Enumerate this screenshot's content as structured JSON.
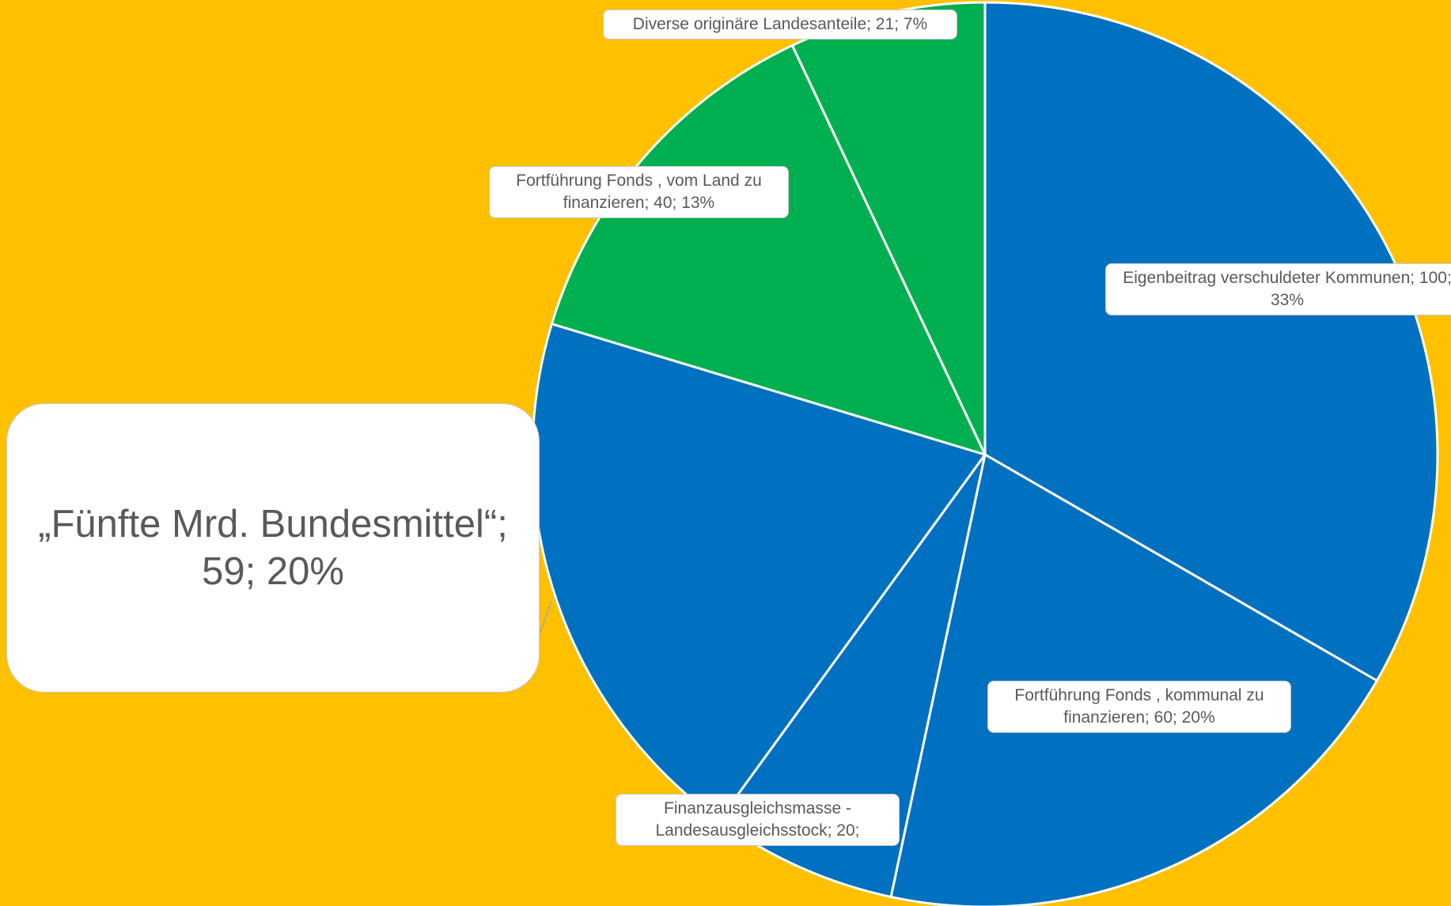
{
  "chart_data": {
    "type": "pie",
    "slices": [
      {
        "label": "Eigenbeitrag verschuldeter Kommunen; 100; 33%",
        "value": 100,
        "color": "#0070C0"
      },
      {
        "label": "Fortführung Fonds , kommunal zu finanzieren; 60; 20%",
        "value": 60,
        "color": "#0070C0"
      },
      {
        "label": "Finanzausgleichsmasse - Landesausgleichsstock; 20;",
        "value": 20,
        "color": "#0070C0"
      },
      {
        "label": "„Fünfte Mrd. Bundesmittel“; 59; 20%",
        "value": 59,
        "color": "#0070C0"
      },
      {
        "label": "Fortführung Fonds , vom Land zu finanzieren; 40; 13%",
        "value": 40,
        "color": "#00B050"
      },
      {
        "label": "Diverse originäre Landesanteile; 21; 7%",
        "value": 21,
        "color": "#00B050"
      }
    ]
  },
  "colors": {
    "background": "#FFC000",
    "blue": "#0070C0",
    "green": "#00B050"
  }
}
